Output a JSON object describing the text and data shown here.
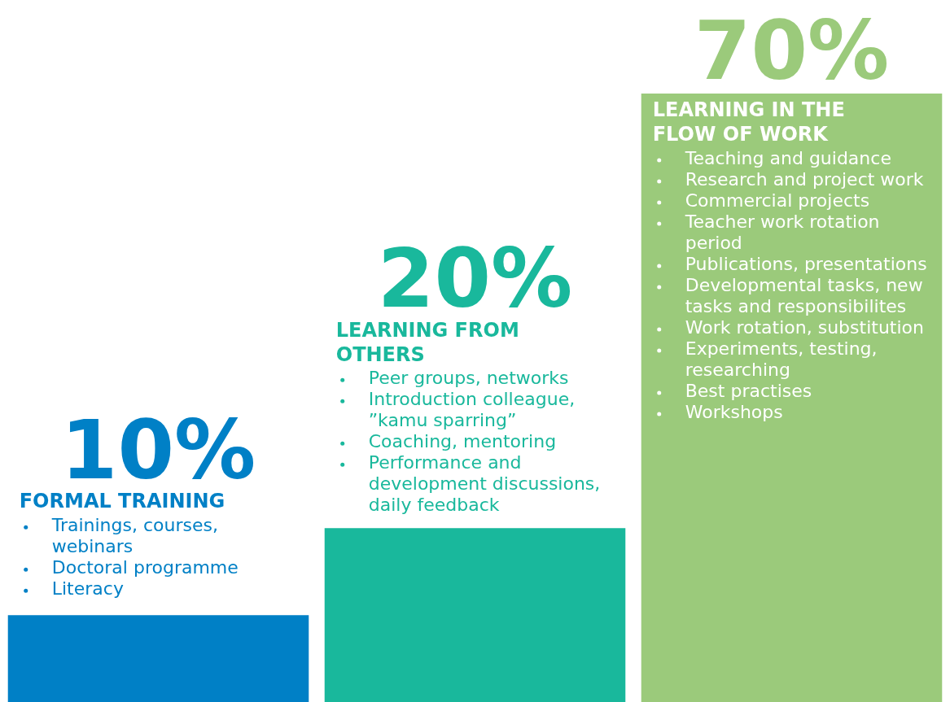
{
  "chart_data": {
    "type": "bar",
    "categories": [
      "FORMAL TRAINING",
      "LEARNING FROM OTHERS",
      "LEARNING IN THE FLOW OF WORK"
    ],
    "values": [
      10,
      20,
      70
    ],
    "colors": [
      "#0080c6",
      "#19b89c",
      "#9bca7b"
    ],
    "value_labels": [
      "10%",
      "20%",
      "70%"
    ],
    "annotations": [
      "Trainings, courses, webinars\nDoctoral programme\nLiteracy",
      "Peer groups, networks\nIntroduction colleague, ”kamu sparring”\nCoaching, mentoring\nPerformance and development discussions, daily feedback",
      "Teaching and guidance\nResearch and project work\nCommercial projects\nTeacher work rotation period\nPublications, presentations\nDevelopmental tasks, new tasks and responsibilites\nWork rotation, substitution\nExperiments, testing, researching\nBest practises\nWorkshops"
    ]
  }
}
